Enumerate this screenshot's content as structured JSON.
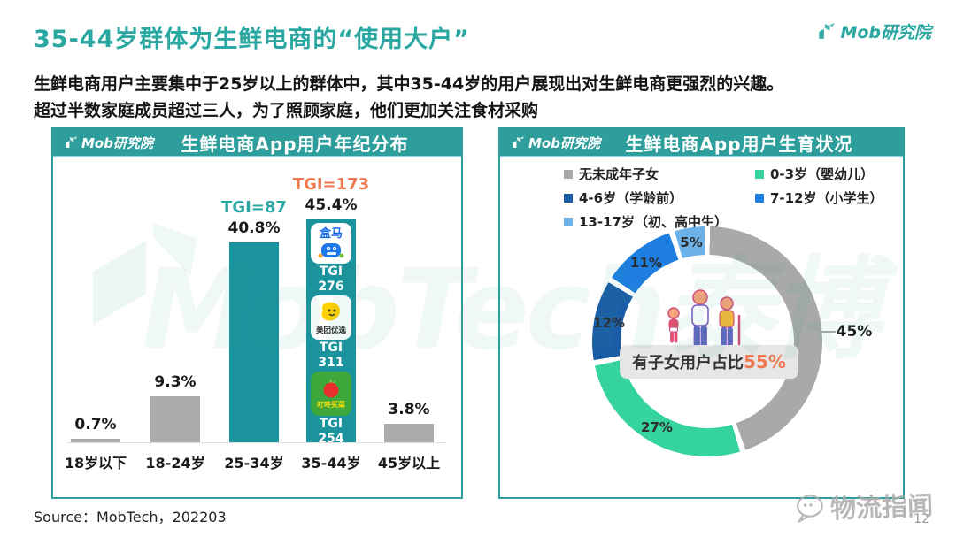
{
  "page": {
    "title": "35-44岁群体为生鲜电商的“使用大户”",
    "subtitle_line1": "生鲜电商用户主要集中于25岁以上的群体中，其中35-44岁的用户展现出对生鲜电商更强烈的兴趣。",
    "subtitle_line2": "超过半数家庭成员超过三人，为了照顾家庭，他们更加关注食材采购",
    "brand": "Mob研究院",
    "source": "Source：MobTech，202203",
    "page_number": "12",
    "watermark_big": "MobTech泰博",
    "watermark_bottom": "物流指闻"
  },
  "colors": {
    "accent_teal": "#2BA7A2",
    "header_teal": "#2D9E9B",
    "bar_teal": "#1B939C",
    "bar_gray": "#ABABAB",
    "tgi_orange": "#EE7950",
    "slice_gray": "#A9A9A9",
    "slice_green": "#35D3A0",
    "slice_darkblue": "#1A5DA6",
    "slice_blue": "#1E7FE0",
    "slice_lightblue": "#6CB2E8"
  },
  "left_panel": {
    "brand": "Mob研究院",
    "title": "生鲜电商App用户年纪分布",
    "bars": [
      {
        "category": "18岁以下",
        "value_label": "0.7%"
      },
      {
        "category": "18-24岁",
        "value_label": "9.3%"
      },
      {
        "category": "25-34岁",
        "value_label": "40.8%",
        "tgi_label": "TGI=87"
      },
      {
        "category": "35-44岁",
        "value_label": "45.4%",
        "tgi_label": "TGI=173"
      },
      {
        "category": "45岁以上",
        "value_label": "3.8%"
      }
    ],
    "apps": [
      {
        "name": "盒马",
        "tgi_title": "TGI",
        "tgi_value": "276"
      },
      {
        "name": "美团优选",
        "tgi_title": "TGI",
        "tgi_value": "311"
      },
      {
        "name": "叮咚买菜",
        "tgi_title": "TGI",
        "tgi_value": "254"
      }
    ]
  },
  "right_panel": {
    "brand": "Mob研究院",
    "title": "生鲜电商App用户生育状况",
    "legend_col1": [
      {
        "label": "无未成年子女",
        "color": "#A9A9A9"
      },
      {
        "label": "4-6岁（学龄前）",
        "color": "#1A5DA6"
      },
      {
        "label": "13-17岁（初、高中生）",
        "color": "#6CB2E8"
      }
    ],
    "legend_col2": [
      {
        "label": "0-3岁（婴幼儿）",
        "color": "#35D3A0"
      },
      {
        "label": "7-12岁（小学生）",
        "color": "#1E7FE0"
      }
    ],
    "slice_labels": [
      "45%",
      "27%",
      "12%",
      "11%",
      "5%"
    ],
    "center_label": "有子女用户占比",
    "center_value": "55%"
  },
  "chart_data": [
    {
      "type": "bar",
      "title": "生鲜电商App用户年纪分布",
      "categories": [
        "18岁以下",
        "18-24岁",
        "25-34岁",
        "35-44岁",
        "45岁以上"
      ],
      "values": [
        0.7,
        9.3,
        40.8,
        45.4,
        3.8
      ],
      "unit": "%",
      "ylim": [
        0,
        50
      ],
      "grid": false,
      "highlighted_categories": [
        "25-34岁",
        "35-44岁"
      ],
      "annotations": [
        {
          "category": "25-34岁",
          "label": "TGI=87"
        },
        {
          "category": "35-44岁",
          "label": "TGI=173"
        },
        {
          "category": "35-44岁",
          "app": "盒马",
          "tgi": 276
        },
        {
          "category": "35-44岁",
          "app": "美团优选",
          "tgi": 311
        },
        {
          "category": "35-44岁",
          "app": "叮咚买菜",
          "tgi": 254
        }
      ]
    },
    {
      "type": "pie",
      "subtype": "donut",
      "title": "生鲜电商App用户生育状况",
      "slices": [
        {
          "label": "无未成年子女",
          "value": 45,
          "color": "#A9A9A9"
        },
        {
          "label": "0-3岁（婴幼儿）",
          "value": 27,
          "color": "#35D3A0"
        },
        {
          "label": "4-6岁（学龄前）",
          "value": 12,
          "color": "#1A5DA6"
        },
        {
          "label": "7-12岁（小学生）",
          "value": 11,
          "color": "#1E7FE0"
        },
        {
          "label": "13-17岁（初、高中生）",
          "value": 5,
          "color": "#6CB2E8"
        }
      ],
      "center_annotation": "有子女用户占比55%",
      "legend_position": "top"
    }
  ]
}
